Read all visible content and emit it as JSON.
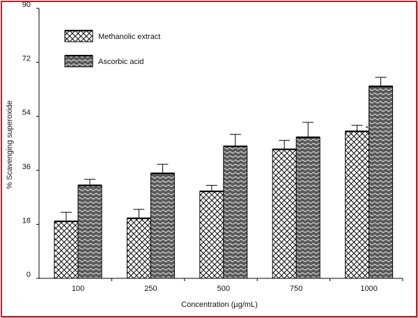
{
  "chart_data": {
    "type": "bar",
    "xlabel": "Concentration (µg/mL)",
    "ylabel": "% Scavenging superoxide",
    "ylim": [
      0,
      90
    ],
    "yticks": [
      0,
      18,
      36,
      54,
      72,
      90
    ],
    "categories": [
      "100",
      "250",
      "500",
      "750",
      "1000"
    ],
    "series": [
      {
        "name": "Methanolic extract",
        "values": [
          19,
          20,
          29,
          43,
          49
        ],
        "errors": [
          3,
          3,
          2,
          3,
          2
        ],
        "pattern": "crosshatch"
      },
      {
        "name": "Ascorbic acid",
        "values": [
          31,
          35,
          44,
          47,
          64
        ],
        "errors": [
          2,
          3,
          4,
          5,
          3
        ],
        "pattern": "wave"
      }
    ],
    "annotations": [
      {
        "text": "*",
        "category": "1000",
        "series": "Methanolic extract"
      }
    ],
    "legend_position": "top-left",
    "grid": false
  },
  "colors": {
    "frame": "#b8232a",
    "bar_fill": "#ffffff",
    "bar_fill_dark": "#555555",
    "stroke": "#000000"
  }
}
